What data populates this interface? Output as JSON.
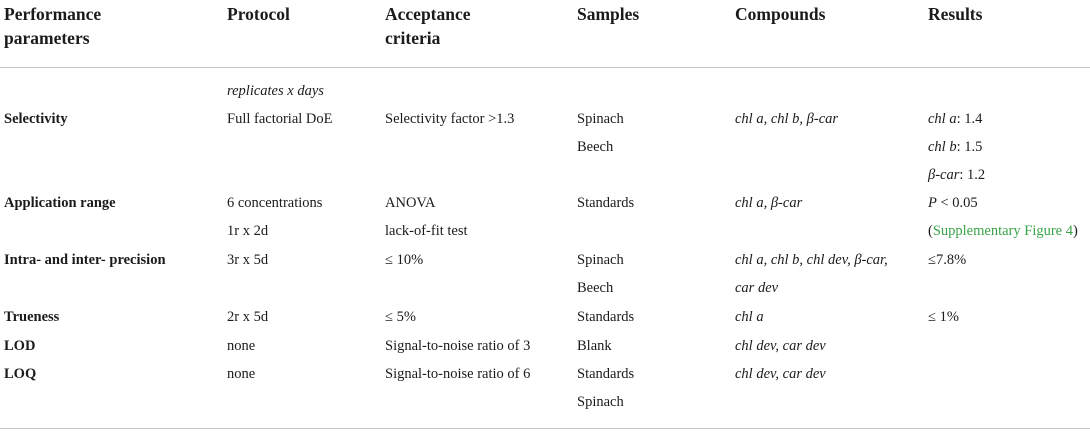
{
  "headers": {
    "h0_line1": "Performance",
    "h0_line2": "parameters",
    "h1": "Protocol",
    "h2_line1": "Acceptance",
    "h2_line2": "criteria",
    "h3": "Samples",
    "h4": "Compounds",
    "h5": "Results"
  },
  "subheader": {
    "protocol_note": "replicates x days"
  },
  "rows": {
    "selectivity": {
      "param": "Selectivity",
      "protocol": "Full factorial DoE",
      "criteria": "Selectivity factor >1.3",
      "samples": [
        "Spinach",
        "Beech"
      ],
      "compounds": "chl a, chl b, β-car",
      "results": [
        {
          "label": "chl a",
          "value": ": 1.4"
        },
        {
          "label": "chl b",
          "value": ": 1.5"
        },
        {
          "label": "β-car",
          "value": ": 1.2"
        }
      ]
    },
    "application_range": {
      "param": "Application range",
      "protocol": [
        "6 concentrations",
        "1r x 2d"
      ],
      "criteria": [
        "ANOVA",
        "lack-of-fit test"
      ],
      "samples": "Standards",
      "compounds": "chl a, β-car",
      "results_p": "P",
      "results_rest": " < 0.05",
      "results_link_open": "(",
      "results_link": "Supplementary Figure 4",
      "results_link_close": ")"
    },
    "precision": {
      "param": "Intra- and inter- precision",
      "protocol": "3r x 5d",
      "criteria": "≤ 10%",
      "samples": [
        "Spinach",
        "Beech"
      ],
      "compounds": [
        "chl a, chl b, chl dev, β-car,",
        "car dev"
      ],
      "results": "≤7.8%"
    },
    "trueness": {
      "param": "Trueness",
      "protocol": "2r x 5d",
      "criteria": "≤ 5%",
      "samples": "Standards",
      "compounds": "chl a",
      "results": "≤ 1%"
    },
    "lod": {
      "param": "LOD",
      "protocol": "none",
      "criteria": "Signal-to-noise ratio of 3",
      "samples": "Blank",
      "compounds": "chl dev, car dev"
    },
    "loq": {
      "param": "LOQ",
      "protocol": "none",
      "criteria": "Signal-to-noise ratio of 6",
      "samples": [
        "Standards",
        "Spinach"
      ],
      "compounds": "chl dev, car dev"
    }
  }
}
